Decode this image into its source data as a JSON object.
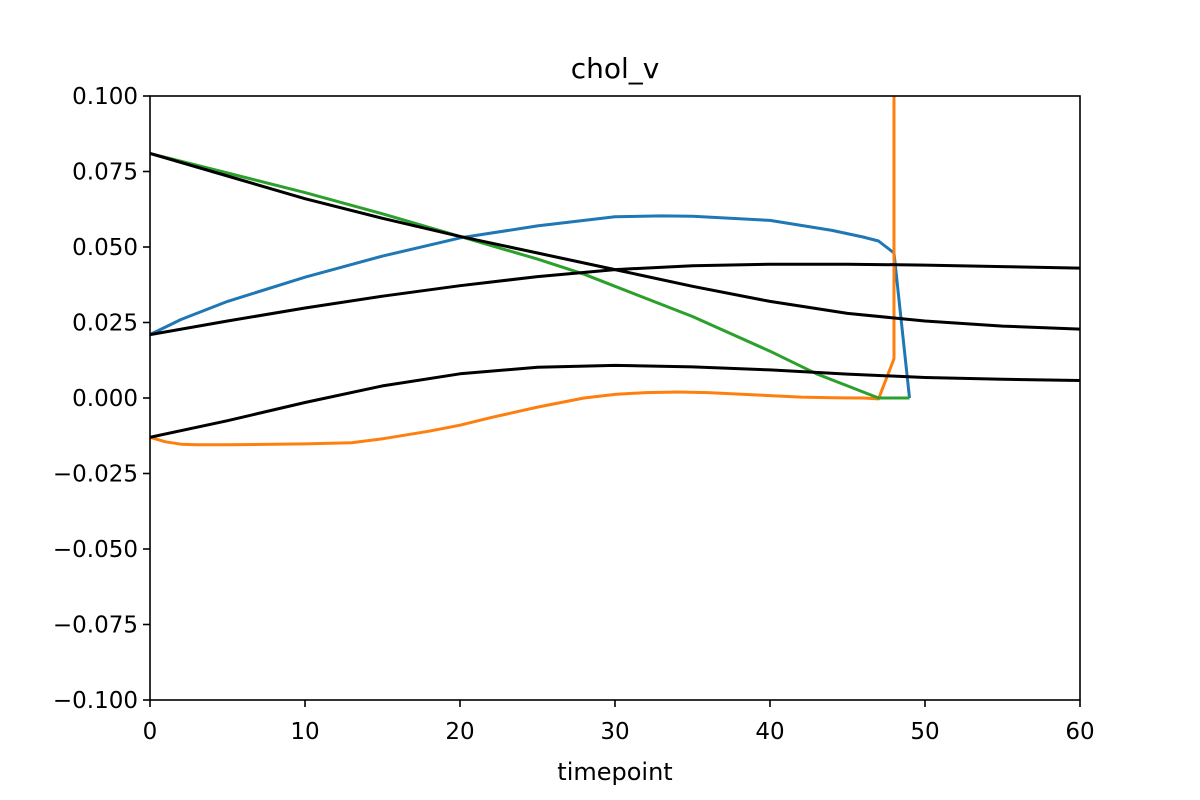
{
  "chart_data": {
    "type": "line",
    "title": "chol_v",
    "xlabel": "timepoint",
    "ylabel": "",
    "xlim": [
      0,
      60
    ],
    "ylim": [
      -0.1,
      0.1
    ],
    "grid": false,
    "legend": "none",
    "x_ticks": [
      0,
      10,
      20,
      30,
      40,
      50,
      60
    ],
    "x_tick_labels": [
      "0",
      "10",
      "20",
      "30",
      "40",
      "50",
      "60"
    ],
    "y_ticks": [
      -0.1,
      -0.075,
      -0.05,
      -0.025,
      0,
      0.025,
      0.05,
      0.075,
      0.1
    ],
    "y_tick_labels": [
      "−0.100",
      "−0.075",
      "−0.050",
      "−0.025",
      "0.000",
      "0.025",
      "0.050",
      "0.075",
      "0.100"
    ],
    "series": [
      {
        "color": "#1f77b4",
        "x": [
          0,
          2,
          5,
          10,
          15,
          20,
          25,
          30,
          33,
          35,
          40,
          44,
          46,
          47,
          48,
          49
        ],
        "y": [
          0.021,
          0.026,
          0.032,
          0.04,
          0.047,
          0.053,
          0.057,
          0.06,
          0.0603,
          0.0602,
          0.0588,
          0.0555,
          0.0533,
          0.052,
          0.048,
          0.0
        ]
      },
      {
        "color": "#ff7f0e",
        "x": [
          0,
          1,
          2,
          3,
          5,
          8,
          10,
          13,
          15,
          18,
          20,
          22,
          25,
          28,
          30,
          32,
          34,
          36,
          38,
          40,
          42,
          44,
          45.5,
          46,
          47,
          48,
          48,
          48
        ],
        "y": [
          -0.013,
          -0.0145,
          -0.0153,
          -0.0155,
          -0.0155,
          -0.0153,
          -0.0152,
          -0.0148,
          -0.0135,
          -0.011,
          -0.009,
          -0.0065,
          -0.003,
          0.0,
          0.0012,
          0.0018,
          0.002,
          0.0018,
          0.0013,
          0.0008,
          0.0003,
          0.0001,
          0.0,
          0.0,
          -0.0003,
          0.013,
          0.05,
          0.1
        ]
      },
      {
        "color": "#2ca02c",
        "x": [
          0,
          5,
          10,
          15,
          20,
          25,
          28,
          30,
          35,
          40,
          43,
          45,
          47,
          48,
          49
        ],
        "y": [
          0.081,
          0.0745,
          0.068,
          0.061,
          0.0535,
          0.046,
          0.041,
          0.037,
          0.027,
          0.0155,
          0.008,
          0.004,
          0.0,
          0.0,
          0.0
        ]
      },
      {
        "color": "#000000",
        "x": [
          0,
          5,
          10,
          15,
          20,
          25,
          30,
          35,
          40,
          45,
          50,
          55,
          60
        ],
        "y": [
          0.081,
          0.0735,
          0.066,
          0.0595,
          0.0535,
          0.048,
          0.0425,
          0.037,
          0.032,
          0.028,
          0.0255,
          0.0238,
          0.0228
        ]
      },
      {
        "color": "#000000",
        "x": [
          0,
          5,
          10,
          15,
          20,
          25,
          30,
          35,
          40,
          45,
          50,
          55,
          60
        ],
        "y": [
          0.021,
          0.0255,
          0.0298,
          0.0337,
          0.0372,
          0.0402,
          0.0425,
          0.0438,
          0.0443,
          0.0443,
          0.044,
          0.0435,
          0.043
        ]
      },
      {
        "color": "#000000",
        "x": [
          0,
          5,
          10,
          15,
          20,
          25,
          30,
          35,
          40,
          45,
          50,
          55,
          60
        ],
        "y": [
          -0.013,
          -0.0075,
          -0.0015,
          0.004,
          0.008,
          0.0102,
          0.0108,
          0.0103,
          0.0093,
          0.0079,
          0.0068,
          0.0062,
          0.0058
        ]
      }
    ]
  }
}
